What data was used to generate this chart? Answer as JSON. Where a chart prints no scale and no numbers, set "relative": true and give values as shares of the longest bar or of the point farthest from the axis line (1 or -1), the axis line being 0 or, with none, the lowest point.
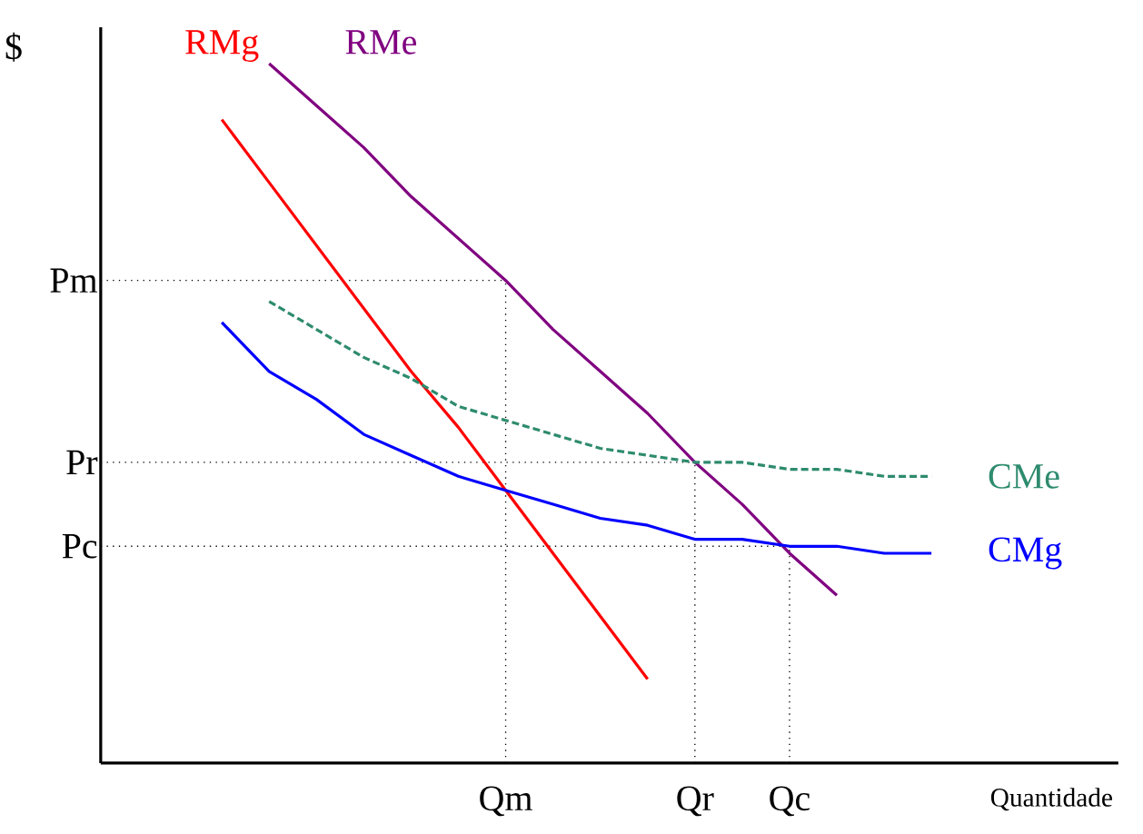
{
  "chart_data": {
    "type": "line",
    "relative": true,
    "xlabel": "Quantidade",
    "ylabel": "$",
    "categories": [
      null,
      null,
      null,
      null,
      null,
      null,
      null,
      null,
      "Qm",
      null,
      null,
      null,
      "Qr",
      null,
      "Qc",
      null,
      null,
      null,
      null,
      null,
      null
    ],
    "series": [
      {
        "name": "RMg",
        "color": "#ff0000",
        "values": [
          null,
          null,
          0.92,
          0.83,
          0.74,
          0.65,
          0.56,
          0.48,
          0.39,
          0.3,
          0.21,
          0.12,
          null,
          null,
          null,
          null,
          null,
          null,
          null,
          null,
          null
        ]
      },
      {
        "name": "RMe",
        "color": "#800080",
        "values": [
          null,
          null,
          null,
          1,
          0.94,
          0.88,
          0.81,
          0.75,
          0.69,
          0.62,
          0.56,
          0.5,
          0.43,
          0.37,
          0.3,
          0.24,
          null,
          null,
          null,
          null,
          null
        ]
      },
      {
        "name": "CMe",
        "color": "#2e8b6e",
        "line_style": "dashed",
        "values": [
          null,
          null,
          null,
          0.66,
          0.62,
          0.58,
          0.55,
          0.51,
          0.49,
          0.47,
          0.45,
          0.44,
          0.43,
          0.43,
          0.42,
          0.42,
          0.41,
          0.41,
          null,
          null,
          null
        ]
      },
      {
        "name": "CMg",
        "color": "#0000ff",
        "values": [
          null,
          null,
          0.63,
          0.56,
          0.52,
          0.47,
          0.44,
          0.41,
          0.39,
          0.37,
          0.35,
          0.34,
          0.32,
          0.32,
          0.31,
          0.31,
          0.3,
          0.3,
          null,
          null,
          null
        ]
      }
    ],
    "ref_lines": [
      {
        "axis": "y",
        "value": 0.69,
        "label": "Pm",
        "line_style": "dotted"
      },
      {
        "axis": "y",
        "value": 0.43,
        "label": "Pr",
        "line_style": "dotted"
      },
      {
        "axis": "y",
        "value": 0.31,
        "label": "Pc",
        "line_style": "dotted"
      },
      {
        "axis": "x",
        "value": "Qm",
        "line_style": "dotted"
      },
      {
        "axis": "x",
        "value": "Qr",
        "line_style": "dotted"
      },
      {
        "axis": "x",
        "value": "Qc",
        "line_style": "dotted"
      }
    ]
  }
}
